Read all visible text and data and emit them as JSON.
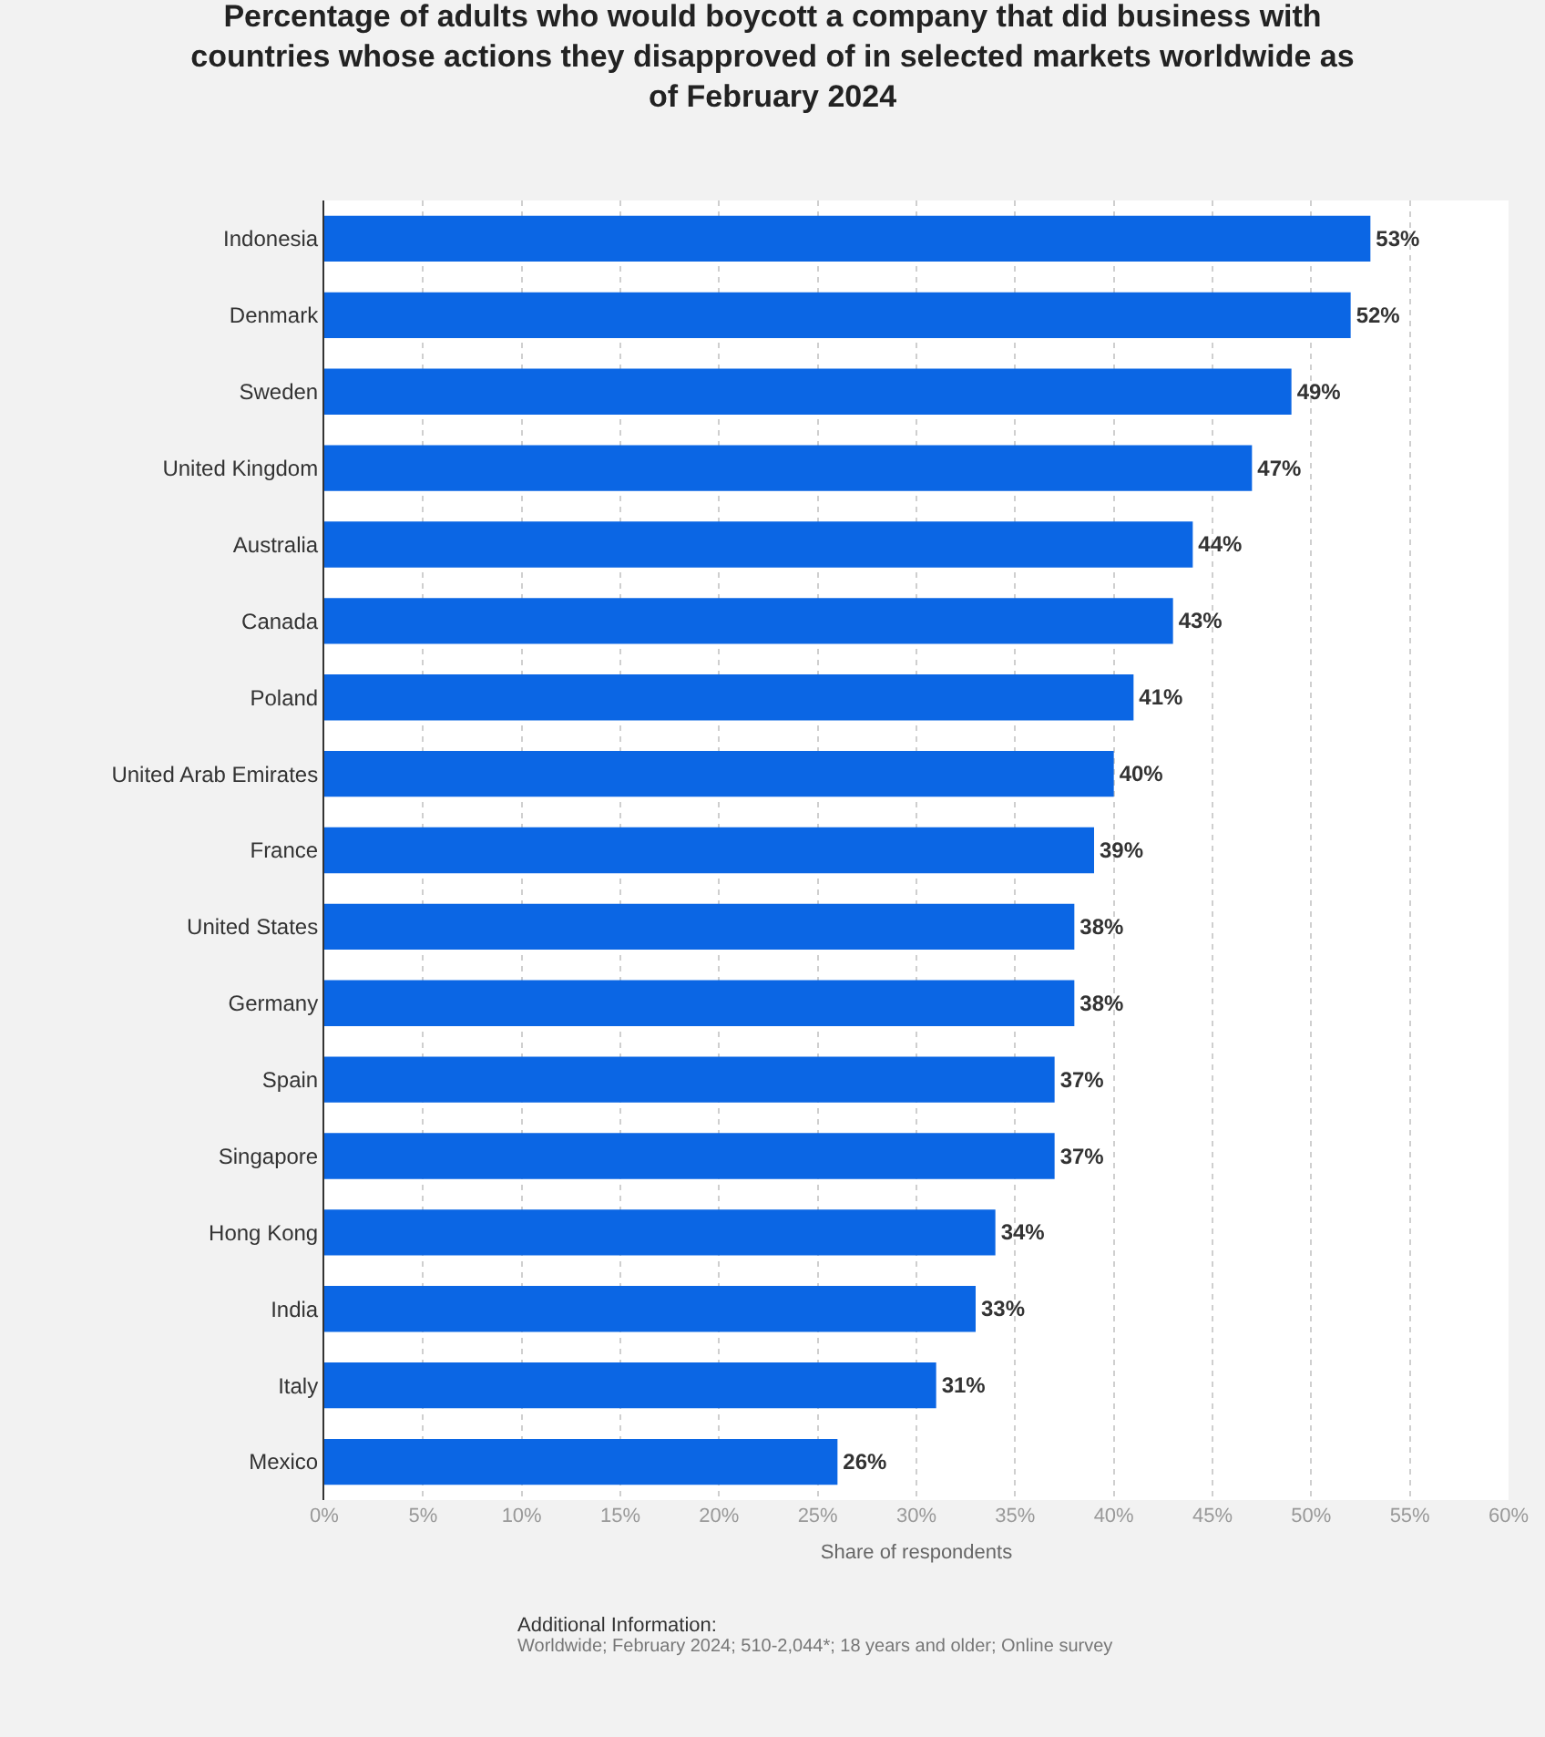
{
  "chart_data": {
    "type": "bar",
    "orientation": "horizontal",
    "title": "Percentage of adults who would boycott a company that did business with countries whose actions they disapproved of in selected markets worldwide as of February 2024",
    "xlabel": "Share of respondents",
    "categories": [
      "Indonesia",
      "Denmark",
      "Sweden",
      "United Kingdom",
      "Australia",
      "Canada",
      "Poland",
      "United Arab Emirates",
      "France",
      "United States",
      "Germany",
      "Spain",
      "Singapore",
      "Hong Kong",
      "India",
      "Italy",
      "Mexico"
    ],
    "values": [
      53,
      52,
      49,
      47,
      44,
      43,
      41,
      40,
      39,
      38,
      38,
      37,
      37,
      34,
      33,
      31,
      26
    ],
    "value_labels": [
      "53%",
      "52%",
      "49%",
      "47%",
      "44%",
      "43%",
      "41%",
      "40%",
      "39%",
      "38%",
      "38%",
      "37%",
      "37%",
      "34%",
      "33%",
      "31%",
      "26%"
    ],
    "color": "#0b66e4",
    "xlim": [
      0,
      60
    ],
    "xticks": [
      {
        "value": 0,
        "label": "0%"
      },
      {
        "value": 5,
        "label": "5%"
      },
      {
        "value": 10,
        "label": "10%"
      },
      {
        "value": 15,
        "label": "15%"
      },
      {
        "value": 20,
        "label": "20%"
      },
      {
        "value": 25,
        "label": "25%"
      },
      {
        "value": 30,
        "label": "30%"
      },
      {
        "value": 35,
        "label": "35%"
      },
      {
        "value": 40,
        "label": "40%"
      },
      {
        "value": 45,
        "label": "45%"
      },
      {
        "value": 50,
        "label": "50%"
      },
      {
        "value": 55,
        "label": "55%"
      },
      {
        "value": 60,
        "label": "60%"
      }
    ],
    "grid": "x",
    "annotations": [
      "Additional Information:",
      "Worldwide; February 2024; 510-2,044*; 18 years and older; Online survey"
    ]
  }
}
